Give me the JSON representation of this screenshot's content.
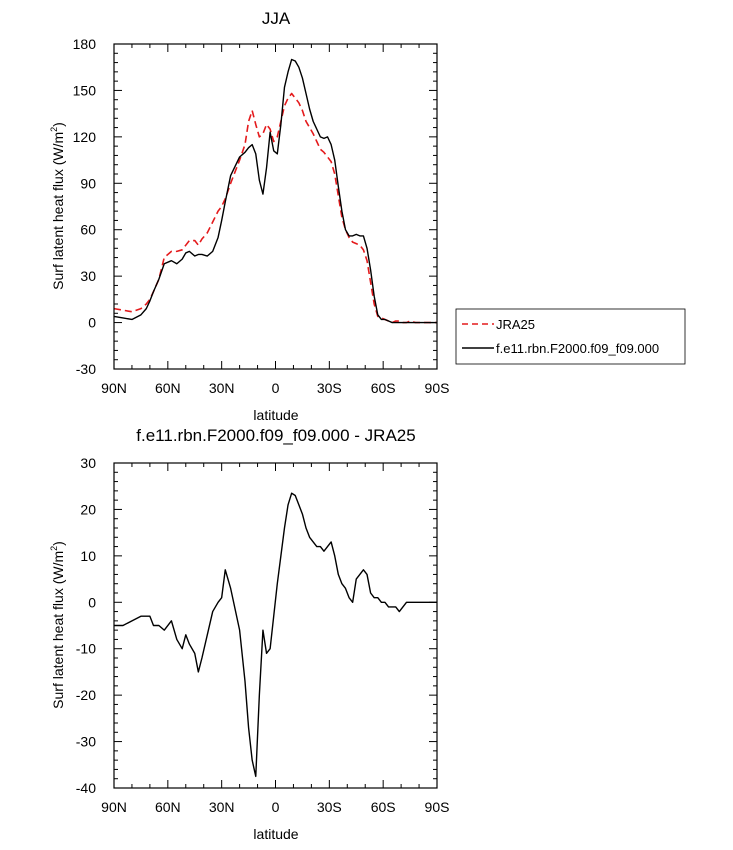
{
  "chart_data": [
    {
      "type": "line",
      "title": "JJA",
      "xlabel": "latitude",
      "ylabel": "Surf latent heat flux (W/m",
      "ylabel_sup": "2",
      "ylabel_close": ")",
      "xlim": [
        -90,
        90
      ],
      "ylim": [
        -30,
        180
      ],
      "x_ticks": [
        -90,
        -60,
        -30,
        0,
        30,
        60,
        90
      ],
      "x_tick_labels": [
        "90N",
        "60N",
        "30N",
        "0",
        "30S",
        "60S",
        "90S"
      ],
      "y_ticks": [
        -30,
        0,
        30,
        60,
        90,
        120,
        150,
        180
      ],
      "y_tick_labels": [
        "-30",
        "0",
        "30",
        "60",
        "90",
        "120",
        "150",
        "180"
      ],
      "legend": [
        {
          "label": "JRA25",
          "color": "#e41a1c",
          "dash": "dashed"
        },
        {
          "label": "f.e11.rbn.F2000.f09_f09.000",
          "color": "#000000",
          "dash": "solid"
        }
      ],
      "series": [
        {
          "name": "JRA25",
          "color": "#e41a1c",
          "dash": "dashed",
          "x": [
            -90,
            -85,
            -80,
            -75,
            -72,
            -70,
            -68,
            -65,
            -62,
            -58,
            -55,
            -52,
            -50,
            -48,
            -45,
            -43,
            -41,
            -38,
            -35,
            -32,
            -30,
            -28,
            -25,
            -20,
            -17,
            -15,
            -13,
            -11,
            -9,
            -7,
            -5,
            -3,
            -1,
            1,
            3,
            5,
            7,
            9,
            11,
            13,
            15,
            17,
            19,
            21,
            23,
            25,
            27,
            29,
            31,
            33,
            35,
            37,
            39,
            41,
            43,
            45,
            47,
            49,
            51,
            53,
            55,
            57,
            59,
            61,
            63,
            65,
            67,
            69,
            71,
            73,
            75,
            78,
            81,
            84,
            87,
            90
          ],
          "y": [
            9,
            8,
            7,
            9,
            12,
            15,
            20,
            28,
            42,
            46,
            46,
            47,
            50,
            53,
            53,
            50,
            54,
            58,
            65,
            72,
            75,
            80,
            90,
            105,
            115,
            130,
            137,
            128,
            120,
            122,
            128,
            125,
            117,
            120,
            130,
            140,
            145,
            148,
            145,
            142,
            137,
            130,
            126,
            122,
            117,
            112,
            110,
            107,
            104,
            96,
            82,
            68,
            60,
            55,
            52,
            51,
            50,
            47,
            40,
            26,
            12,
            4,
            3,
            2,
            1,
            0,
            1,
            1,
            0,
            0,
            1,
            0,
            0,
            0,
            0,
            0
          ],
          "x_full": null
        },
        {
          "name": "f.e11.rbn.F2000.f09_f09.000",
          "color": "#000000",
          "dash": "solid",
          "x": [
            -90,
            -85,
            -80,
            -75,
            -72,
            -70,
            -68,
            -65,
            -62,
            -58,
            -55,
            -52,
            -50,
            -48,
            -45,
            -43,
            -41,
            -38,
            -35,
            -32,
            -30,
            -28,
            -25,
            -20,
            -17,
            -15,
            -13,
            -11,
            -9,
            -7,
            -5,
            -3,
            -1,
            1,
            3,
            5,
            7,
            9,
            11,
            13,
            15,
            17,
            19,
            21,
            23,
            25,
            27,
            29,
            31,
            33,
            35,
            37,
            39,
            41,
            43,
            45,
            47,
            49,
            51,
            53,
            55,
            57,
            59,
            61,
            63,
            65,
            67,
            69,
            71,
            73,
            75,
            78,
            81,
            84,
            87,
            90
          ],
          "y": [
            4,
            3,
            2,
            5,
            9,
            14,
            20,
            28,
            38,
            40,
            38,
            41,
            45,
            46,
            43,
            44,
            44,
            43,
            46,
            55,
            66,
            78,
            95,
            107,
            110,
            113,
            115,
            109,
            92,
            83,
            100,
            123,
            111,
            109,
            128,
            152,
            162,
            170,
            169,
            165,
            158,
            148,
            138,
            130,
            125,
            120,
            119,
            120,
            115,
            105,
            88,
            72,
            60,
            56,
            56,
            57,
            56,
            56,
            48,
            34,
            17,
            5,
            2,
            2,
            1,
            0,
            0,
            0,
            0,
            0,
            0,
            0,
            0,
            0,
            0,
            0
          ]
        }
      ]
    },
    {
      "type": "line",
      "title": "f.e11.rbn.F2000.f09_f09.000 - JRA25",
      "xlabel": "latitude",
      "ylabel": "Surf latent heat flux (W/m",
      "ylabel_sup": "2",
      "ylabel_close": ")",
      "xlim": [
        -90,
        90
      ],
      "ylim": [
        -40,
        30
      ],
      "x_ticks": [
        -90,
        -60,
        -30,
        0,
        30,
        60,
        90
      ],
      "x_tick_labels": [
        "90N",
        "60N",
        "30N",
        "0",
        "30S",
        "60S",
        "90S"
      ],
      "y_ticks": [
        -40,
        -30,
        -20,
        -10,
        0,
        10,
        20,
        30
      ],
      "y_tick_labels": [
        "-40",
        "-30",
        "-20",
        "-10",
        "0",
        "10",
        "20",
        "30"
      ],
      "series": [
        {
          "name": "f.e11.rbn.F2000.f09_f09.000 - JRA25",
          "color": "#000000",
          "dash": "solid",
          "x": [
            -90,
            -85,
            -80,
            -75,
            -72,
            -70,
            -68,
            -65,
            -62,
            -58,
            -55,
            -52,
            -50,
            -48,
            -45,
            -43,
            -41,
            -38,
            -35,
            -32,
            -30,
            -28,
            -25,
            -20,
            -17,
            -15,
            -13,
            -11,
            -9,
            -7,
            -5,
            -3,
            -1,
            1,
            3,
            5,
            7,
            9,
            11,
            13,
            15,
            17,
            19,
            21,
            23,
            25,
            27,
            29,
            31,
            33,
            35,
            37,
            39,
            41,
            43,
            45,
            47,
            49,
            51,
            53,
            55,
            57,
            59,
            61,
            63,
            65,
            67,
            69,
            71,
            73,
            75,
            78,
            81,
            84,
            87,
            90
          ],
          "y": [
            -5,
            -5,
            -4,
            -3,
            -3,
            -3,
            -5,
            -5,
            -6,
            -4,
            -8,
            -10,
            -7,
            -9,
            -11,
            -15,
            -12,
            -7,
            -2,
            0,
            1,
            7,
            3,
            -6,
            -17,
            -27,
            -34,
            -37.5,
            -20,
            -6,
            -11,
            -10,
            -3,
            4,
            10,
            16,
            21,
            23.5,
            23,
            21,
            19,
            16,
            14,
            13,
            12,
            12,
            11,
            12,
            13,
            10,
            6,
            4,
            3,
            1,
            0,
            5,
            6,
            7,
            6,
            2,
            1,
            1,
            0,
            0,
            -1,
            -1,
            -1,
            -2,
            -1,
            0,
            0,
            0,
            0,
            0,
            0,
            0
          ]
        }
      ]
    }
  ]
}
